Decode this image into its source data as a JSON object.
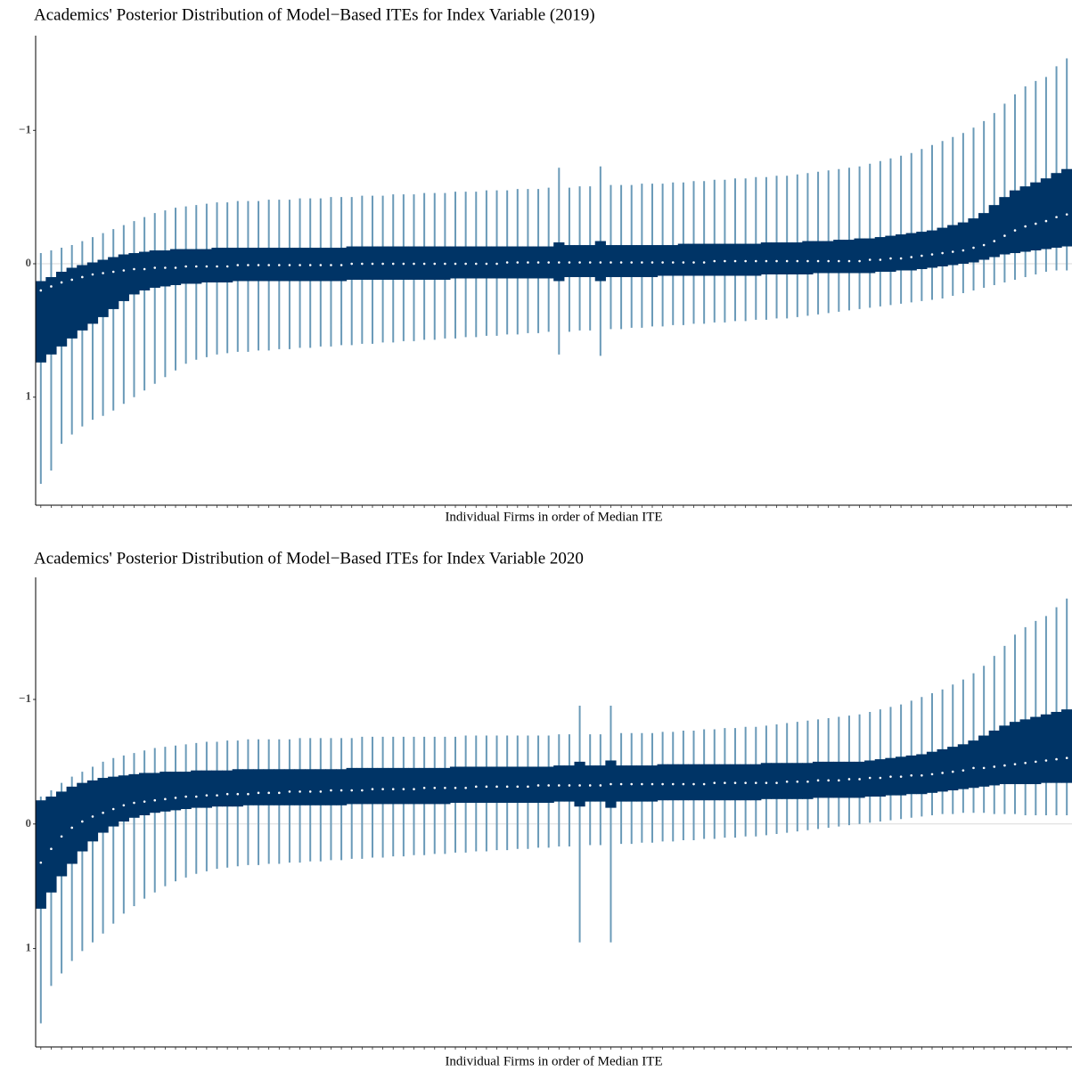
{
  "chart_data": [
    {
      "type": "interval",
      "title": "Academics' Posterior Distribution of Model−Based ITEs for Index Variable (2019)",
      "xlabel": "Individual Firms in order of Median ITE",
      "ylim": [
        -1.71,
        1.81
      ],
      "y_reversed": true,
      "yticks": [
        {
          "value": -1,
          "label": "−1"
        },
        0,
        1
      ],
      "hline": 0,
      "color_outer": "#6a9ab8",
      "color_inner": "#003466",
      "median_color": "#ffffff",
      "categories": [
        null,
        null,
        null,
        null,
        null,
        null,
        null,
        null,
        null,
        null,
        null,
        null,
        null,
        null,
        null,
        null,
        null,
        null,
        null,
        null,
        null,
        null,
        null,
        null,
        null,
        null,
        null,
        null,
        null,
        null,
        null,
        null,
        null,
        null,
        null,
        null,
        null,
        null,
        null,
        null,
        null,
        null,
        null,
        null,
        null,
        null,
        null,
        null,
        null,
        null,
        null,
        null,
        null,
        null,
        null,
        null,
        null,
        null,
        null,
        null,
        null,
        null,
        null,
        null,
        null,
        null,
        null,
        null,
        null,
        null,
        null,
        null,
        null,
        null,
        null,
        null,
        null,
        null,
        null,
        null,
        null,
        null,
        null,
        null,
        null,
        null,
        null,
        null,
        null,
        null,
        null,
        null,
        null,
        null,
        null,
        null,
        null,
        null,
        null,
        null
      ],
      "median": [
        0.2,
        0.17,
        0.14,
        0.12,
        0.1,
        0.08,
        0.07,
        0.06,
        0.05,
        0.04,
        0.04,
        0.03,
        0.03,
        0.03,
        0.02,
        0.02,
        0.02,
        0.02,
        0.02,
        0.01,
        0.01,
        0.01,
        0.01,
        0.01,
        0.01,
        0.01,
        0.01,
        0.01,
        0.01,
        0.01,
        0.0,
        0.0,
        0.0,
        0.0,
        0.0,
        0.0,
        0.0,
        0.0,
        0.0,
        0.0,
        0.0,
        0.0,
        0.0,
        0.0,
        0.0,
        -0.01,
        -0.01,
        -0.01,
        -0.01,
        -0.01,
        -0.01,
        -0.01,
        -0.01,
        -0.01,
        -0.01,
        -0.01,
        -0.01,
        -0.01,
        -0.01,
        -0.01,
        -0.01,
        -0.01,
        -0.01,
        -0.01,
        -0.01,
        -0.02,
        -0.02,
        -0.02,
        -0.02,
        -0.02,
        -0.02,
        -0.02,
        -0.02,
        -0.02,
        -0.02,
        -0.02,
        -0.02,
        -0.02,
        -0.02,
        -0.02,
        -0.03,
        -0.03,
        -0.04,
        -0.04,
        -0.05,
        -0.06,
        -0.07,
        -0.08,
        -0.09,
        -0.1,
        -0.12,
        -0.14,
        -0.17,
        -0.21,
        -0.25,
        -0.28,
        -0.3,
        -0.32,
        -0.35,
        -0.37
      ],
      "outer_low": [
        -0.08,
        -0.1,
        -0.12,
        -0.14,
        -0.17,
        -0.2,
        -0.23,
        -0.26,
        -0.29,
        -0.32,
        -0.35,
        -0.38,
        -0.4,
        -0.42,
        -0.43,
        -0.44,
        -0.45,
        -0.46,
        -0.46,
        -0.47,
        -0.47,
        -0.47,
        -0.48,
        -0.48,
        -0.48,
        -0.49,
        -0.49,
        -0.49,
        -0.5,
        -0.5,
        -0.5,
        -0.51,
        -0.51,
        -0.51,
        -0.52,
        -0.52,
        -0.52,
        -0.53,
        -0.53,
        -0.53,
        -0.54,
        -0.54,
        -0.54,
        -0.55,
        -0.55,
        -0.55,
        -0.56,
        -0.56,
        -0.56,
        -0.57,
        -0.72,
        -0.57,
        -0.58,
        -0.58,
        -0.73,
        -0.59,
        -0.59,
        -0.59,
        -0.6,
        -0.6,
        -0.6,
        -0.61,
        -0.61,
        -0.62,
        -0.62,
        -0.63,
        -0.63,
        -0.64,
        -0.64,
        -0.65,
        -0.65,
        -0.66,
        -0.66,
        -0.67,
        -0.68,
        -0.69,
        -0.7,
        -0.71,
        -0.72,
        -0.73,
        -0.75,
        -0.77,
        -0.79,
        -0.81,
        -0.83,
        -0.86,
        -0.89,
        -0.92,
        -0.95,
        -0.98,
        -1.02,
        -1.07,
        -1.13,
        -1.2,
        -1.27,
        -1.33,
        -1.37,
        -1.4,
        -1.48,
        -1.54
      ],
      "outer_high": [
        1.65,
        1.55,
        1.35,
        1.28,
        1.22,
        1.17,
        1.14,
        1.1,
        1.05,
        1.0,
        0.95,
        0.9,
        0.85,
        0.8,
        0.75,
        0.72,
        0.7,
        0.68,
        0.67,
        0.66,
        0.66,
        0.65,
        0.65,
        0.64,
        0.64,
        0.63,
        0.63,
        0.62,
        0.62,
        0.61,
        0.61,
        0.6,
        0.6,
        0.59,
        0.59,
        0.58,
        0.58,
        0.57,
        0.57,
        0.56,
        0.56,
        0.55,
        0.55,
        0.54,
        0.54,
        0.53,
        0.53,
        0.52,
        0.52,
        0.51,
        0.68,
        0.51,
        0.5,
        0.5,
        0.69,
        0.49,
        0.49,
        0.48,
        0.48,
        0.47,
        0.47,
        0.46,
        0.46,
        0.45,
        0.45,
        0.44,
        0.44,
        0.43,
        0.43,
        0.42,
        0.42,
        0.41,
        0.41,
        0.4,
        0.39,
        0.38,
        0.37,
        0.36,
        0.35,
        0.34,
        0.33,
        0.32,
        0.31,
        0.3,
        0.29,
        0.28,
        0.27,
        0.26,
        0.24,
        0.22,
        0.2,
        0.18,
        0.16,
        0.14,
        0.12,
        0.1,
        0.08,
        0.06,
        0.05,
        0.05
      ],
      "inner_low": [
        0.13,
        0.1,
        0.06,
        0.03,
        0.01,
        -0.01,
        -0.03,
        -0.05,
        -0.07,
        -0.08,
        -0.09,
        -0.1,
        -0.1,
        -0.11,
        -0.11,
        -0.11,
        -0.11,
        -0.12,
        -0.12,
        -0.12,
        -0.12,
        -0.12,
        -0.12,
        -0.12,
        -0.12,
        -0.12,
        -0.12,
        -0.12,
        -0.12,
        -0.12,
        -0.13,
        -0.13,
        -0.13,
        -0.13,
        -0.13,
        -0.13,
        -0.13,
        -0.13,
        -0.13,
        -0.13,
        -0.13,
        -0.13,
        -0.13,
        -0.13,
        -0.13,
        -0.13,
        -0.13,
        -0.13,
        -0.13,
        -0.13,
        -0.16,
        -0.14,
        -0.14,
        -0.14,
        -0.17,
        -0.14,
        -0.14,
        -0.14,
        -0.14,
        -0.14,
        -0.14,
        -0.14,
        -0.15,
        -0.15,
        -0.15,
        -0.15,
        -0.15,
        -0.15,
        -0.15,
        -0.15,
        -0.16,
        -0.16,
        -0.16,
        -0.16,
        -0.17,
        -0.17,
        -0.17,
        -0.18,
        -0.18,
        -0.19,
        -0.19,
        -0.2,
        -0.21,
        -0.22,
        -0.23,
        -0.24,
        -0.25,
        -0.27,
        -0.29,
        -0.31,
        -0.34,
        -0.38,
        -0.44,
        -0.5,
        -0.55,
        -0.58,
        -0.61,
        -0.64,
        -0.68,
        -0.71
      ],
      "inner_high": [
        0.74,
        0.68,
        0.62,
        0.56,
        0.5,
        0.45,
        0.4,
        0.34,
        0.28,
        0.23,
        0.2,
        0.18,
        0.17,
        0.16,
        0.15,
        0.15,
        0.14,
        0.14,
        0.14,
        0.13,
        0.13,
        0.13,
        0.13,
        0.13,
        0.13,
        0.13,
        0.13,
        0.13,
        0.13,
        0.13,
        0.12,
        0.12,
        0.12,
        0.12,
        0.12,
        0.12,
        0.12,
        0.12,
        0.12,
        0.12,
        0.11,
        0.11,
        0.11,
        0.11,
        0.11,
        0.11,
        0.11,
        0.11,
        0.11,
        0.11,
        0.13,
        0.1,
        0.1,
        0.1,
        0.13,
        0.1,
        0.1,
        0.1,
        0.1,
        0.1,
        0.09,
        0.09,
        0.09,
        0.09,
        0.09,
        0.09,
        0.09,
        0.09,
        0.09,
        0.09,
        0.08,
        0.08,
        0.08,
        0.08,
        0.08,
        0.07,
        0.07,
        0.07,
        0.07,
        0.07,
        0.07,
        0.06,
        0.06,
        0.05,
        0.05,
        0.04,
        0.03,
        0.02,
        0.01,
        0.0,
        -0.01,
        -0.03,
        -0.05,
        -0.07,
        -0.08,
        -0.09,
        -0.1,
        -0.11,
        -0.12,
        -0.13
      ]
    },
    {
      "type": "interval",
      "title": "Academics' Posterior Distribution of Model−Based ITEs for Index Variable 2020",
      "xlabel": "Individual Firms in order of Median ITE",
      "ylim": [
        -1.98,
        1.79
      ],
      "y_reversed": true,
      "yticks": [
        {
          "value": -1,
          "label": "−1"
        },
        0,
        1
      ],
      "hline": 0,
      "color_outer": "#6a9ab8",
      "color_inner": "#003466",
      "median_color": "#ffffff",
      "categories": [
        null,
        null,
        null,
        null,
        null,
        null,
        null,
        null,
        null,
        null,
        null,
        null,
        null,
        null,
        null,
        null,
        null,
        null,
        null,
        null,
        null,
        null,
        null,
        null,
        null,
        null,
        null,
        null,
        null,
        null,
        null,
        null,
        null,
        null,
        null,
        null,
        null,
        null,
        null,
        null,
        null,
        null,
        null,
        null,
        null,
        null,
        null,
        null,
        null,
        null,
        null,
        null,
        null,
        null,
        null,
        null,
        null,
        null,
        null,
        null,
        null,
        null,
        null,
        null,
        null,
        null,
        null,
        null,
        null,
        null,
        null,
        null,
        null,
        null,
        null,
        null,
        null,
        null,
        null,
        null,
        null,
        null,
        null,
        null,
        null,
        null,
        null,
        null,
        null,
        null,
        null,
        null,
        null,
        null,
        null,
        null,
        null,
        null,
        null,
        null
      ],
      "median": [
        0.31,
        0.2,
        0.1,
        0.03,
        -0.02,
        -0.06,
        -0.09,
        -0.12,
        -0.15,
        -0.17,
        -0.18,
        -0.19,
        -0.2,
        -0.21,
        -0.22,
        -0.22,
        -0.23,
        -0.23,
        -0.24,
        -0.24,
        -0.24,
        -0.25,
        -0.25,
        -0.25,
        -0.26,
        -0.26,
        -0.26,
        -0.26,
        -0.27,
        -0.27,
        -0.27,
        -0.27,
        -0.28,
        -0.28,
        -0.28,
        -0.28,
        -0.28,
        -0.29,
        -0.29,
        -0.29,
        -0.29,
        -0.29,
        -0.3,
        -0.3,
        -0.3,
        -0.3,
        -0.3,
        -0.3,
        -0.31,
        -0.31,
        -0.31,
        -0.31,
        -0.31,
        -0.31,
        -0.31,
        -0.32,
        -0.32,
        -0.32,
        -0.32,
        -0.32,
        -0.32,
        -0.32,
        -0.32,
        -0.32,
        -0.32,
        -0.33,
        -0.33,
        -0.33,
        -0.33,
        -0.33,
        -0.33,
        -0.33,
        -0.34,
        -0.34,
        -0.34,
        -0.35,
        -0.35,
        -0.35,
        -0.36,
        -0.36,
        -0.37,
        -0.37,
        -0.38,
        -0.38,
        -0.39,
        -0.39,
        -0.4,
        -0.41,
        -0.42,
        -0.43,
        -0.45,
        -0.45,
        -0.46,
        -0.47,
        -0.48,
        -0.49,
        -0.5,
        -0.51,
        -0.52,
        -0.53
      ],
      "outer_low": [
        -0.22,
        -0.27,
        -0.33,
        -0.38,
        -0.42,
        -0.46,
        -0.5,
        -0.53,
        -0.55,
        -0.57,
        -0.59,
        -0.61,
        -0.62,
        -0.63,
        -0.64,
        -0.65,
        -0.66,
        -0.66,
        -0.67,
        -0.67,
        -0.68,
        -0.68,
        -0.68,
        -0.68,
        -0.68,
        -0.69,
        -0.69,
        -0.69,
        -0.69,
        -0.69,
        -0.69,
        -0.7,
        -0.7,
        -0.7,
        -0.7,
        -0.7,
        -0.7,
        -0.7,
        -0.7,
        -0.7,
        -0.7,
        -0.71,
        -0.71,
        -0.71,
        -0.71,
        -0.71,
        -0.71,
        -0.71,
        -0.71,
        -0.71,
        -0.72,
        -0.72,
        -0.95,
        -0.72,
        -0.72,
        -0.95,
        -0.73,
        -0.73,
        -0.73,
        -0.73,
        -0.74,
        -0.74,
        -0.75,
        -0.75,
        -0.76,
        -0.76,
        -0.77,
        -0.77,
        -0.78,
        -0.78,
        -0.79,
        -0.8,
        -0.81,
        -0.82,
        -0.83,
        -0.84,
        -0.85,
        -0.86,
        -0.87,
        -0.88,
        -0.9,
        -0.92,
        -0.94,
        -0.96,
        -0.99,
        -1.02,
        -1.05,
        -1.08,
        -1.12,
        -1.16,
        -1.21,
        -1.27,
        -1.35,
        -1.43,
        -1.52,
        -1.58,
        -1.63,
        -1.67,
        -1.74,
        -1.81
      ],
      "outer_high": [
        1.6,
        1.3,
        1.2,
        1.1,
        1.02,
        0.95,
        0.88,
        0.8,
        0.72,
        0.66,
        0.6,
        0.55,
        0.5,
        0.46,
        0.43,
        0.4,
        0.38,
        0.36,
        0.35,
        0.34,
        0.33,
        0.33,
        0.32,
        0.32,
        0.31,
        0.31,
        0.3,
        0.3,
        0.29,
        0.29,
        0.28,
        0.28,
        0.27,
        0.27,
        0.26,
        0.26,
        0.25,
        0.25,
        0.24,
        0.24,
        0.23,
        0.23,
        0.22,
        0.22,
        0.21,
        0.21,
        0.2,
        0.2,
        0.19,
        0.19,
        0.18,
        0.18,
        0.95,
        0.17,
        0.17,
        0.95,
        0.16,
        0.16,
        0.15,
        0.15,
        0.14,
        0.14,
        0.13,
        0.13,
        0.12,
        0.12,
        0.11,
        0.11,
        0.1,
        0.1,
        0.09,
        0.08,
        0.07,
        0.06,
        0.05,
        0.04,
        0.03,
        0.02,
        0.01,
        0.0,
        -0.01,
        -0.02,
        -0.03,
        -0.04,
        -0.05,
        -0.06,
        -0.07,
        -0.08,
        -0.08,
        -0.09,
        -0.09,
        -0.09,
        -0.08,
        -0.08,
        -0.08,
        -0.07,
        -0.07,
        -0.07,
        -0.07,
        -0.07
      ],
      "inner_low": [
        -0.19,
        -0.22,
        -0.26,
        -0.3,
        -0.33,
        -0.35,
        -0.37,
        -0.38,
        -0.39,
        -0.4,
        -0.41,
        -0.41,
        -0.42,
        -0.42,
        -0.42,
        -0.43,
        -0.43,
        -0.43,
        -0.43,
        -0.44,
        -0.44,
        -0.44,
        -0.44,
        -0.44,
        -0.44,
        -0.44,
        -0.44,
        -0.44,
        -0.44,
        -0.44,
        -0.45,
        -0.45,
        -0.45,
        -0.45,
        -0.45,
        -0.45,
        -0.45,
        -0.45,
        -0.45,
        -0.45,
        -0.46,
        -0.46,
        -0.46,
        -0.46,
        -0.46,
        -0.46,
        -0.46,
        -0.46,
        -0.46,
        -0.46,
        -0.47,
        -0.47,
        -0.5,
        -0.47,
        -0.47,
        -0.51,
        -0.47,
        -0.47,
        -0.47,
        -0.47,
        -0.48,
        -0.48,
        -0.48,
        -0.48,
        -0.48,
        -0.48,
        -0.48,
        -0.48,
        -0.48,
        -0.48,
        -0.49,
        -0.49,
        -0.49,
        -0.49,
        -0.49,
        -0.5,
        -0.5,
        -0.5,
        -0.5,
        -0.5,
        -0.51,
        -0.52,
        -0.53,
        -0.54,
        -0.55,
        -0.56,
        -0.58,
        -0.6,
        -0.62,
        -0.64,
        -0.67,
        -0.71,
        -0.75,
        -0.79,
        -0.82,
        -0.84,
        -0.86,
        -0.88,
        -0.9,
        -0.92
      ],
      "inner_high": [
        0.68,
        0.55,
        0.42,
        0.32,
        0.22,
        0.14,
        0.07,
        0.02,
        -0.02,
        -0.05,
        -0.07,
        -0.09,
        -0.1,
        -0.11,
        -0.12,
        -0.13,
        -0.13,
        -0.14,
        -0.14,
        -0.14,
        -0.15,
        -0.15,
        -0.15,
        -0.15,
        -0.15,
        -0.15,
        -0.15,
        -0.15,
        -0.15,
        -0.15,
        -0.16,
        -0.16,
        -0.16,
        -0.16,
        -0.16,
        -0.16,
        -0.16,
        -0.16,
        -0.16,
        -0.16,
        -0.17,
        -0.17,
        -0.17,
        -0.17,
        -0.17,
        -0.17,
        -0.17,
        -0.17,
        -0.17,
        -0.17,
        -0.18,
        -0.18,
        -0.14,
        -0.18,
        -0.18,
        -0.13,
        -0.18,
        -0.18,
        -0.18,
        -0.18,
        -0.19,
        -0.19,
        -0.19,
        -0.19,
        -0.19,
        -0.19,
        -0.19,
        -0.19,
        -0.19,
        -0.19,
        -0.2,
        -0.2,
        -0.2,
        -0.2,
        -0.2,
        -0.21,
        -0.21,
        -0.21,
        -0.21,
        -0.21,
        -0.22,
        -0.22,
        -0.23,
        -0.23,
        -0.24,
        -0.24,
        -0.25,
        -0.26,
        -0.27,
        -0.28,
        -0.29,
        -0.3,
        -0.31,
        -0.32,
        -0.32,
        -0.32,
        -0.32,
        -0.33,
        -0.33,
        -0.33
      ]
    }
  ]
}
